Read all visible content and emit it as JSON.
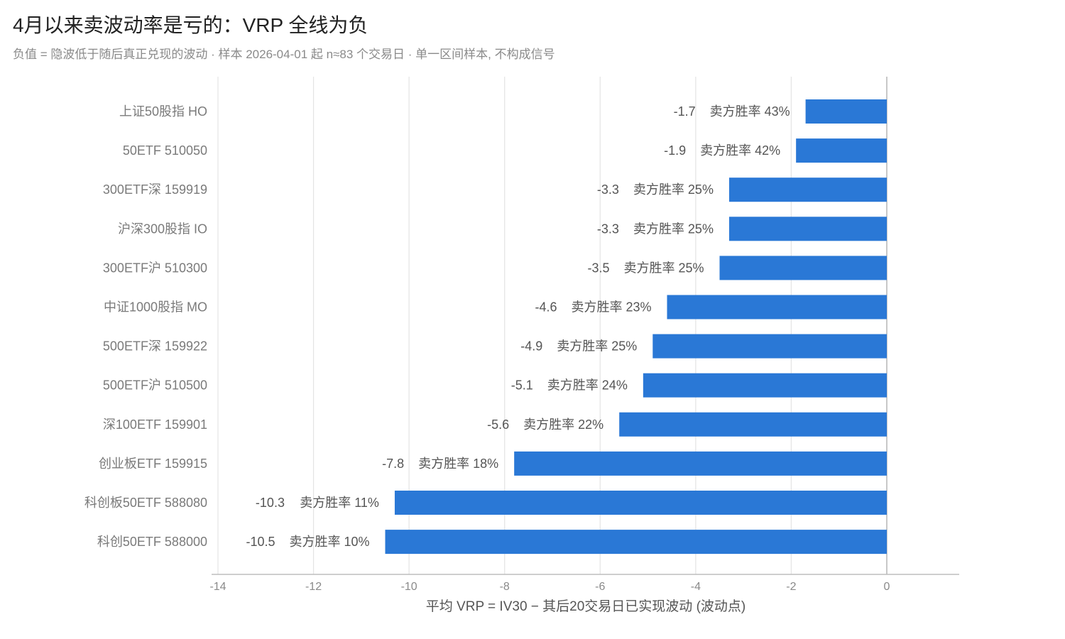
{
  "chart_data": {
    "type": "bar",
    "orientation": "horizontal",
    "title": "4月以来卖波动率是亏的：VRP 全线为负",
    "subtitle": "负值 = 隐波低于随后真正兑现的波动 · 样本 2026-04-01 起 n≈83 个交易日 · 单一区间样本, 不构成信号",
    "xlabel": "平均 VRP = IV30 − 其后20交易日已实现波动 (波动点)",
    "ylabel": "",
    "xlim": [
      -14,
      0
    ],
    "xticks": [
      -14,
      -12,
      -10,
      -8,
      -6,
      -4,
      -2,
      0
    ],
    "grid": true,
    "bar_color": "#2a78d6",
    "categories": [
      "上证50股指 HO",
      "50ETF 510050",
      "300ETF深 159919",
      "沪深300股指 IO",
      "300ETF沪 510300",
      "中证1000股指 MO",
      "500ETF深 159922",
      "500ETF沪 510500",
      "深100ETF 159901",
      "创业板ETF 159915",
      "科创板50ETF 588080",
      "科创50ETF 588000"
    ],
    "values": [
      -1.7,
      -1.9,
      -3.3,
      -3.3,
      -3.5,
      -4.6,
      -4.9,
      -5.1,
      -5.6,
      -7.8,
      -10.3,
      -10.5
    ],
    "value_labels": [
      "-1.7",
      "-1.9",
      "-3.3",
      "-3.3",
      "-3.5",
      "-4.6",
      "-4.9",
      "-5.1",
      "-5.6",
      "-7.8",
      "-10.3",
      "-10.5"
    ],
    "annotations": [
      "卖方胜率 43%",
      "卖方胜率 42%",
      "卖方胜率 25%",
      "卖方胜率 25%",
      "卖方胜率 25%",
      "卖方胜率 23%",
      "卖方胜率 25%",
      "卖方胜率 24%",
      "卖方胜率 22%",
      "卖方胜率 18%",
      "卖方胜率 11%",
      "卖方胜率 10%"
    ]
  }
}
